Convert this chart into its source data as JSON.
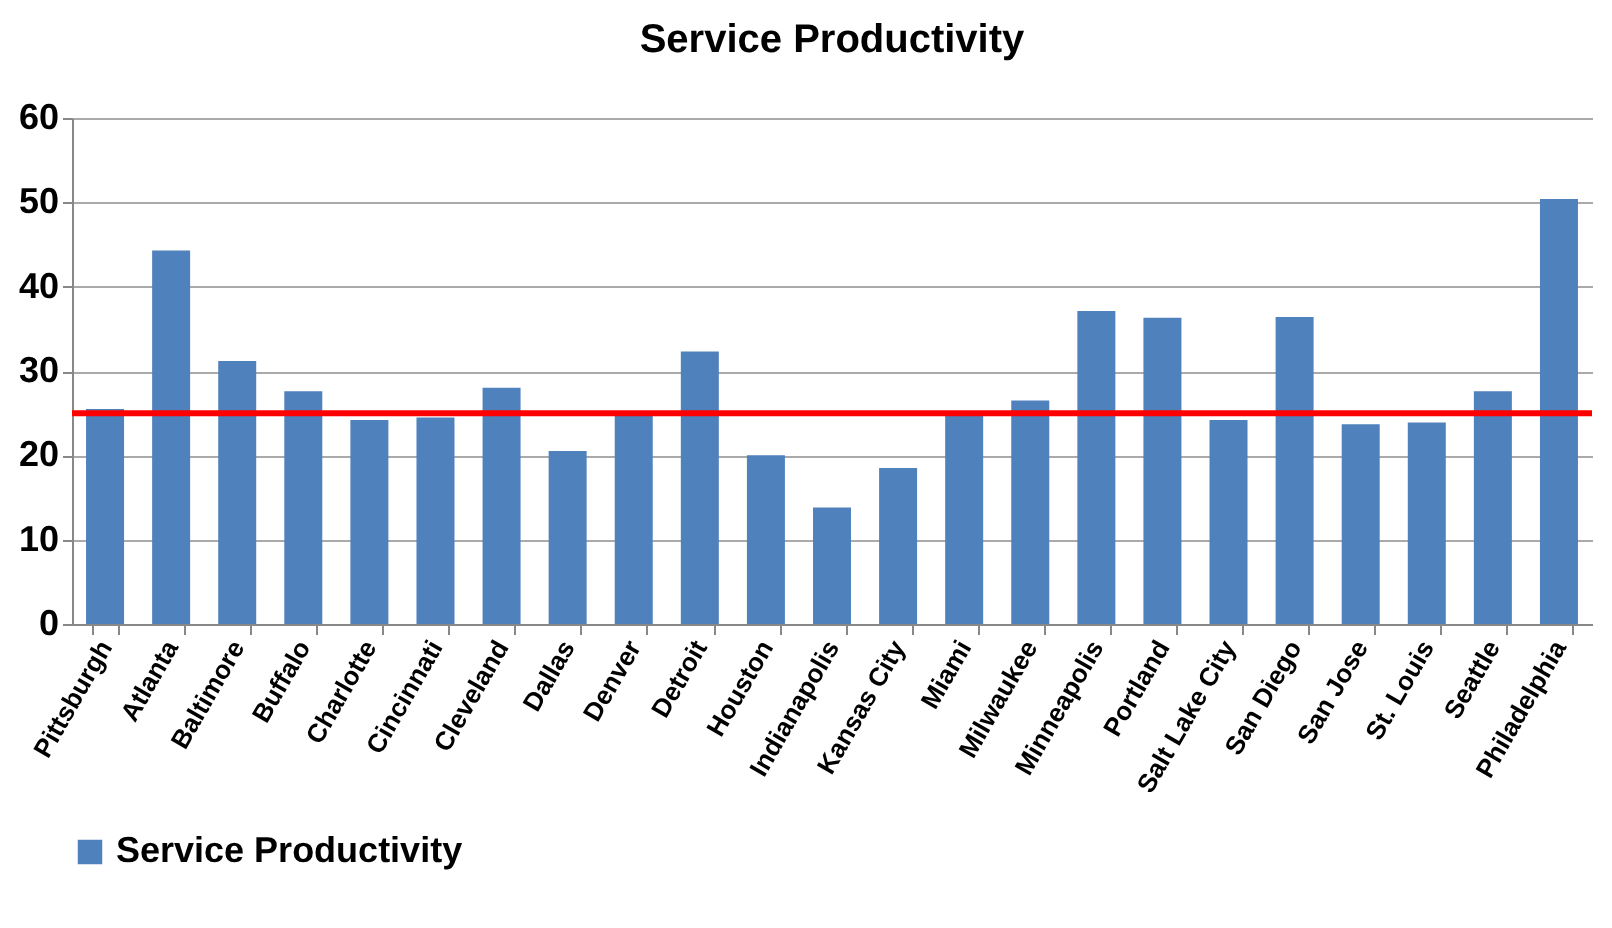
{
  "chart_data": {
    "type": "bar",
    "title": "Service Productivity",
    "categories": [
      "Pittsburgh",
      "Atlanta",
      "Baltimore",
      "Buffalo",
      "Charlotte",
      "Cincinnati",
      "Cleveland",
      "Dallas",
      "Denver",
      "Detroit",
      "Houston",
      "Indianapolis",
      "Kansas City",
      "Miami",
      "Milwaukee",
      "Minneapolis",
      "Portland",
      "Salt Lake City",
      "San Diego",
      "San Jose",
      "St. Louis",
      "Seattle",
      "Philadelphia"
    ],
    "series": [
      {
        "name": "Service Productivity",
        "color": "#4f81bd",
        "values": [
          25.5,
          44.3,
          31.2,
          27.6,
          24.2,
          24.5,
          28.0,
          20.5,
          25.0,
          32.3,
          20.0,
          13.8,
          18.5,
          24.9,
          26.5,
          37.1,
          36.3,
          24.2,
          36.4,
          23.7,
          23.9,
          27.6,
          50.4
        ]
      }
    ],
    "ylim": [
      0,
      60
    ],
    "yticks": [
      0,
      10,
      20,
      30,
      40,
      50,
      60
    ],
    "grid": "y",
    "legend": "bottom",
    "ref_lines": [
      {
        "axis": "y",
        "value": 25,
        "color": "#ff0000"
      }
    ]
  }
}
